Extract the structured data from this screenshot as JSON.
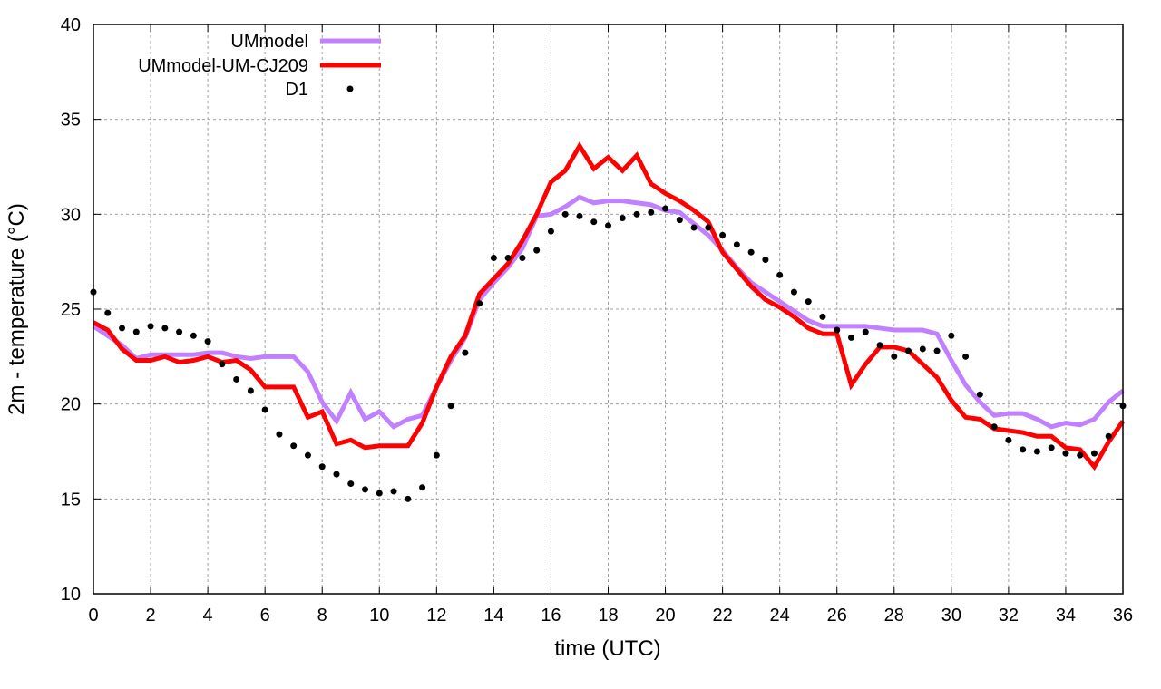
{
  "chart_data": {
    "type": "line",
    "title": "",
    "xlabel": "time (UTC)",
    "ylabel": "2m - temperature (°C)",
    "xlim": [
      0,
      36
    ],
    "ylim": [
      10,
      40
    ],
    "xticks": [
      0,
      2,
      4,
      6,
      8,
      10,
      12,
      14,
      16,
      18,
      20,
      22,
      24,
      26,
      28,
      30,
      32,
      34,
      36
    ],
    "yticks": [
      10,
      15,
      20,
      25,
      30,
      35,
      40
    ],
    "grid": true,
    "legend_placement": "top-left",
    "x_step": 0.5,
    "series": [
      {
        "name": "UMmodel",
        "style": "line",
        "color": "#c080ff",
        "values": [
          24.1,
          23.6,
          23.1,
          22.4,
          22.6,
          22.6,
          22.6,
          22.6,
          22.7,
          22.7,
          22.5,
          22.4,
          22.5,
          22.5,
          22.5,
          21.7,
          20.1,
          19.1,
          20.6,
          19.2,
          19.6,
          18.8,
          19.2,
          19.4,
          20.9,
          22.3,
          23.5,
          25.5,
          26.4,
          27.2,
          28.2,
          29.9,
          30.0,
          30.4,
          30.9,
          30.6,
          30.7,
          30.7,
          30.6,
          30.5,
          30.2,
          30.1,
          29.5,
          28.9,
          28.1,
          27.2,
          26.4,
          25.9,
          25.4,
          24.9,
          24.4,
          24.1,
          24.1,
          24.1,
          24.1,
          24.0,
          23.9,
          23.9,
          23.9,
          23.7,
          22.3,
          21.0,
          20.1,
          19.4,
          19.5,
          19.5,
          19.2,
          18.8,
          19.0,
          18.9,
          19.2,
          20.1,
          20.7
        ]
      },
      {
        "name": "UMmodel-UM-CJ209",
        "style": "line",
        "color": "#ff0000",
        "values": [
          24.3,
          23.9,
          22.9,
          22.3,
          22.3,
          22.5,
          22.2,
          22.3,
          22.5,
          22.2,
          22.3,
          21.8,
          20.9,
          20.9,
          20.9,
          19.3,
          19.6,
          17.9,
          18.1,
          17.7,
          17.8,
          17.8,
          17.8,
          19.0,
          20.9,
          22.5,
          23.6,
          25.8,
          26.6,
          27.4,
          28.6,
          30.0,
          31.7,
          32.3,
          33.6,
          32.4,
          33.0,
          32.3,
          33.1,
          31.6,
          31.1,
          30.7,
          30.2,
          29.6,
          28.0,
          27.1,
          26.2,
          25.5,
          25.1,
          24.6,
          24.0,
          23.7,
          23.7,
          21.0,
          22.1,
          23.0,
          23.0,
          22.8,
          22.1,
          21.4,
          20.2,
          19.3,
          19.2,
          18.7,
          18.6,
          18.5,
          18.3,
          18.3,
          17.7,
          17.6,
          16.7,
          18.0,
          19.1
        ]
      },
      {
        "name": "D1",
        "style": "points",
        "color": "#000000",
        "values": [
          25.9,
          24.8,
          24.0,
          23.8,
          24.1,
          24.0,
          23.8,
          23.6,
          23.3,
          22.1,
          21.3,
          20.7,
          19.7,
          18.4,
          17.8,
          17.3,
          16.7,
          16.3,
          15.8,
          15.5,
          15.3,
          15.4,
          15.0,
          15.6,
          17.3,
          19.9,
          22.7,
          25.3,
          27.7,
          27.7,
          27.7,
          28.1,
          29.1,
          30.0,
          29.9,
          29.6,
          29.4,
          29.8,
          30.0,
          30.1,
          30.3,
          29.7,
          29.3,
          29.3,
          28.9,
          28.4,
          28.0,
          27.6,
          26.8,
          25.9,
          25.4,
          24.6,
          23.9,
          23.5,
          23.8,
          23.1,
          22.5,
          22.8,
          22.9,
          22.8,
          23.6,
          22.5,
          20.5,
          18.8,
          18.1,
          17.6,
          17.5,
          17.7,
          17.4,
          17.3,
          17.4,
          18.3,
          19.9
        ]
      }
    ]
  }
}
